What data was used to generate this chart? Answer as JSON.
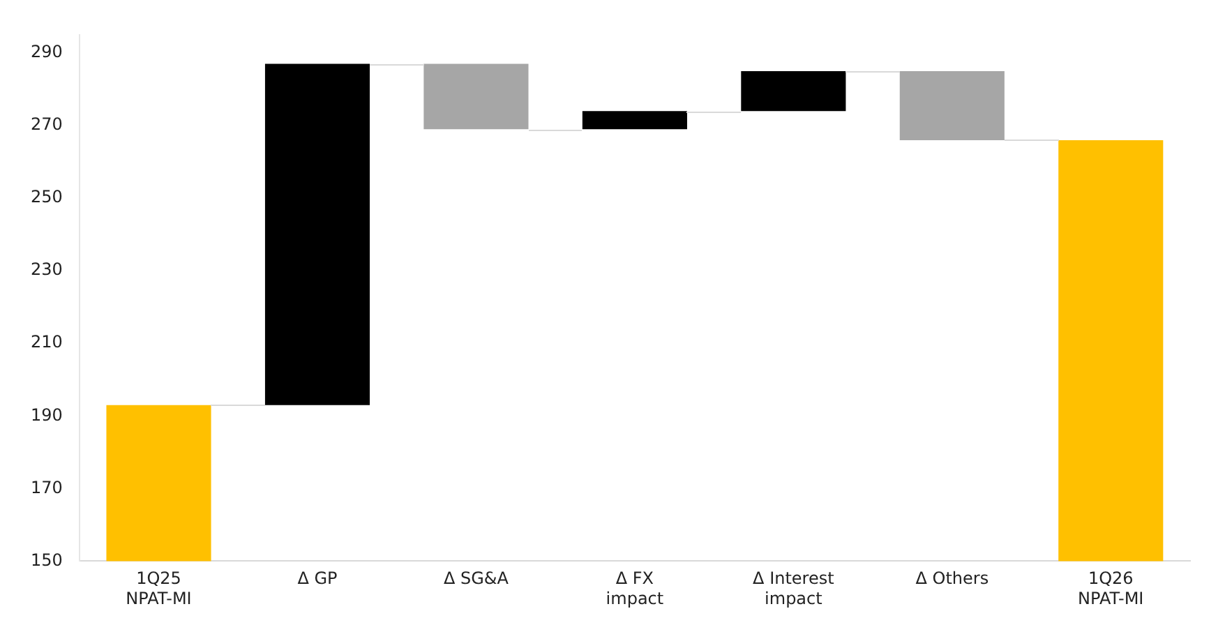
{
  "chart_data": {
    "type": "bar",
    "categories": [
      "1Q25 NPAT-MI",
      "Δ GP",
      "Δ SG&A",
      "Δ FX impact",
      "Δ Interest impact",
      "Δ Others",
      "1Q26 NPAT-MI"
    ],
    "values": [
      193,
      94,
      -18,
      5,
      11,
      -19,
      266
    ],
    "base": [
      null,
      193,
      287,
      269,
      274,
      285,
      null
    ],
    "colors": [
      "#ffc000",
      "#000000",
      "#a6a6a6",
      "#000000",
      "#000000",
      "#a6a6a6",
      "#ffc000"
    ],
    "ylim": [
      150,
      295
    ],
    "yticks": [
      150,
      170,
      190,
      210,
      230,
      250,
      270,
      290
    ],
    "grid": false,
    "legend": false
  }
}
